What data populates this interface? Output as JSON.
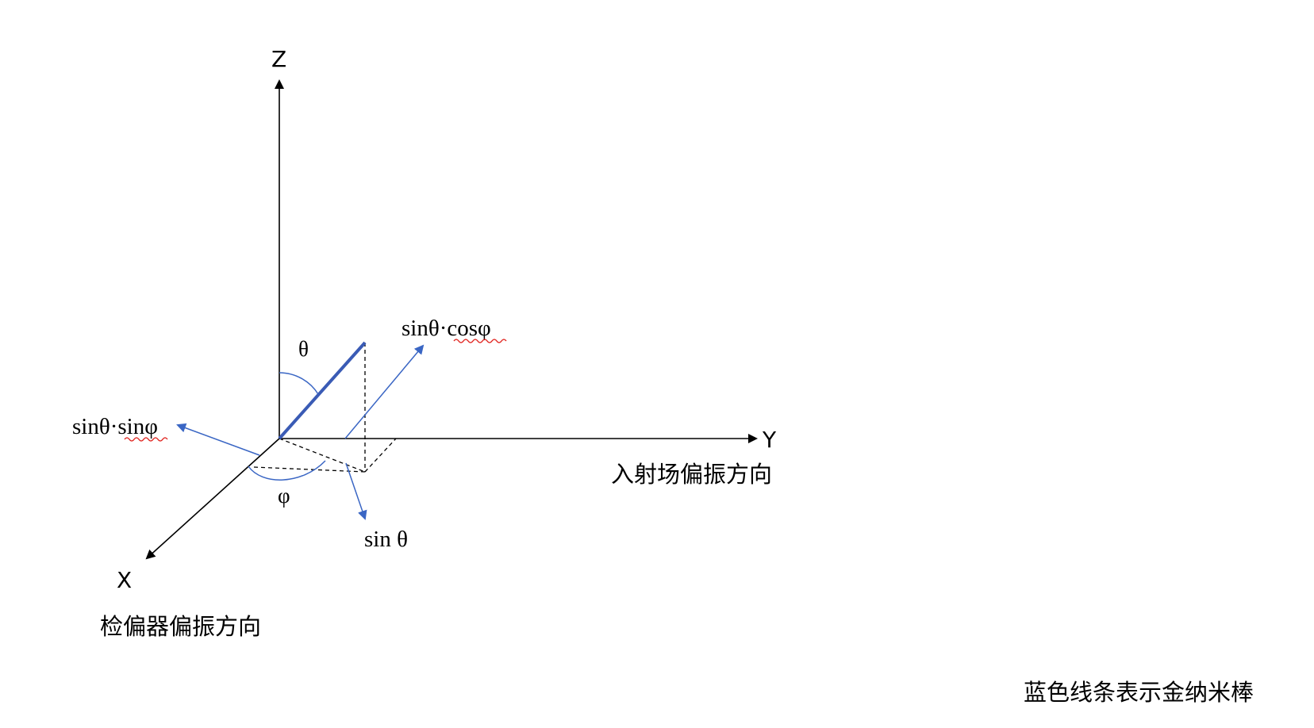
{
  "axes": {
    "z_label": "Z",
    "y_label": "Y",
    "x_label": "X"
  },
  "captions": {
    "incident_field": "入射场偏振方向",
    "analyzer": "检偏器偏振方向",
    "legend_note": "蓝色线条表示金纳米棒"
  },
  "angles": {
    "theta": "θ",
    "phi": "φ"
  },
  "components": {
    "cos_component": "sinθ·cosφ",
    "sin_component": "sinθ·sinφ",
    "projection": "sin θ"
  },
  "colors": {
    "axis": "#000000",
    "nanorod": "#3a5bb5",
    "vector": "#3a66c4",
    "dashed": "#000000",
    "spellcheck": "#e0201b"
  }
}
